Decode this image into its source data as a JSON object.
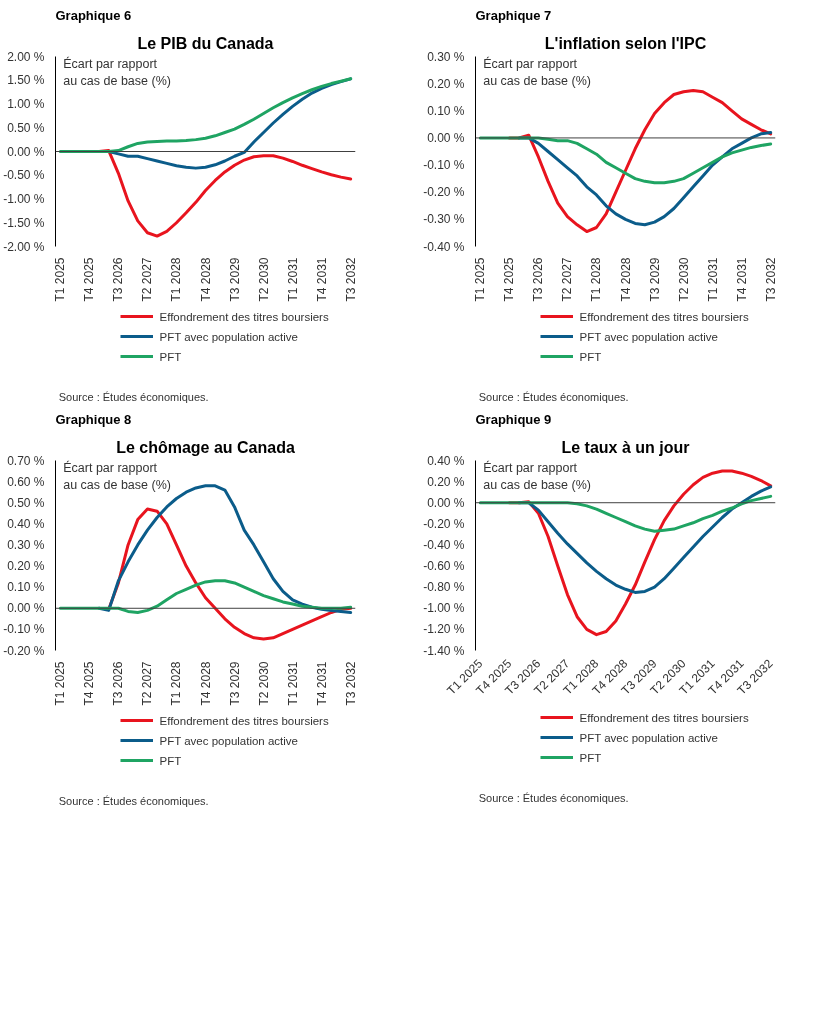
{
  "chart_data": [
    {
      "type": "line",
      "subtitle": "Graphique 6",
      "title": "Le PIB du Canada",
      "ylabel": "Écart par rapport au cas de base (%)",
      "categories": [
        "T1 2025",
        null,
        null,
        "T4 2025",
        null,
        null,
        "T3 2026",
        null,
        null,
        "T2 2027",
        null,
        null,
        "T1 2028",
        null,
        null,
        "T4 2028",
        null,
        null,
        "T3 2029",
        null,
        null,
        "T2 2030",
        null,
        null,
        "T1 2031",
        null,
        null,
        "T4 2031",
        null,
        null,
        "T3 2032"
      ],
      "series": [
        {
          "name": "Effondrement des titres boursiers",
          "color": "#e8141e",
          "values": [
            null,
            null,
            null,
            0,
            0,
            0.02,
            -0.46,
            -1.04,
            -1.46,
            -1.71,
            -1.78,
            -1.68,
            -1.5,
            -1.29,
            -1.07,
            -0.82,
            -0.61,
            -0.43,
            -0.29,
            -0.18,
            -0.11,
            -0.09,
            -0.09,
            -0.14,
            -0.21,
            -0.29,
            -0.36,
            -0.43,
            -0.49,
            -0.54,
            -0.58
          ]
        },
        {
          "name": "PFT avec population active",
          "color": "#0b5c8a",
          "values": [
            null,
            null,
            null,
            null,
            0,
            0,
            -0.05,
            -0.1,
            -0.1,
            -0.15,
            -0.2,
            -0.25,
            -0.3,
            -0.33,
            -0.35,
            -0.33,
            -0.28,
            -0.2,
            -0.1,
            -0.02,
            0.2,
            0.4,
            0.6,
            0.78,
            0.95,
            1.1,
            1.23,
            1.33,
            1.41,
            1.47,
            1.53
          ]
        },
        {
          "name": "PFT",
          "color": "#1fa463",
          "values": [
            0,
            0,
            0,
            0,
            0,
            0,
            0.02,
            0.1,
            0.17,
            0.2,
            0.21,
            0.22,
            0.22,
            0.23,
            0.25,
            0.28,
            0.33,
            0.4,
            0.47,
            0.57,
            0.68,
            0.8,
            0.92,
            1.03,
            1.13,
            1.22,
            1.3,
            1.37,
            1.43,
            1.48,
            1.53
          ]
        }
      ],
      "ylim": [
        -2,
        2
      ],
      "yticks": [
        {
          "value": -2,
          "label": "-2.00 %"
        },
        {
          "value": -1.5,
          "label": "-1.50 %"
        },
        {
          "value": -1,
          "label": "-1.00 %"
        },
        {
          "value": -0.5,
          "label": "-0.50 %"
        },
        {
          "value": 0,
          "label": "0.00 %"
        },
        {
          "value": 0.5,
          "label": "0.50 %"
        },
        {
          "value": 1,
          "label": "1.00 %"
        },
        {
          "value": 1.5,
          "label": "1.50 %"
        },
        {
          "value": 2,
          "label": "2.00 %"
        }
      ],
      "ref_lines": [
        {
          "axis": "y",
          "value": 0,
          "color": "#404040"
        }
      ],
      "legend": "bottom",
      "grid": false,
      "line_style": "solid",
      "marker": "none",
      "annotations": [
        "Source : Études économiques."
      ]
    },
    {
      "type": "line",
      "subtitle": "Graphique 7",
      "title": "L'inflation selon l'IPC",
      "ylabel": "Écart par rapport au cas de base (%)",
      "categories": [
        "T1 2025",
        null,
        null,
        "T4 2025",
        null,
        null,
        "T3 2026",
        null,
        null,
        "T2 2027",
        null,
        null,
        "T1 2028",
        null,
        null,
        "T4 2028",
        null,
        null,
        "T3 2029",
        null,
        null,
        "T2 2030",
        null,
        null,
        "T1 2031",
        null,
        null,
        "T4 2031",
        null,
        null,
        "T3 2032"
      ],
      "series": [
        {
          "name": "Effondrement des titres boursiers",
          "color": "#e8141e",
          "values": [
            null,
            null,
            null,
            0,
            0,
            0.01,
            -0.07,
            -0.16,
            -0.24,
            -0.29,
            -0.32,
            -0.345,
            -0.33,
            -0.28,
            -0.2,
            -0.12,
            -0.04,
            0.03,
            0.09,
            0.13,
            0.16,
            0.17,
            0.175,
            0.17,
            0.15,
            0.13,
            0.1,
            0.07,
            0.05,
            0.03,
            0.015
          ]
        },
        {
          "name": "PFT avec population active",
          "color": "#0b5c8a",
          "values": [
            null,
            null,
            null,
            null,
            0,
            0,
            -0.02,
            -0.05,
            -0.08,
            -0.11,
            -0.14,
            -0.18,
            -0.21,
            -0.25,
            -0.28,
            -0.3,
            -0.315,
            -0.32,
            -0.31,
            -0.29,
            -0.26,
            -0.22,
            -0.18,
            -0.14,
            -0.1,
            -0.07,
            -0.04,
            -0.02,
            0,
            0.015,
            0.02
          ]
        },
        {
          "name": "PFT",
          "color": "#1fa463",
          "values": [
            0,
            0,
            0,
            0,
            0,
            0,
            0,
            -0.005,
            -0.01,
            -0.01,
            -0.02,
            -0.04,
            -0.06,
            -0.09,
            -0.11,
            -0.13,
            -0.15,
            -0.16,
            -0.165,
            -0.165,
            -0.16,
            -0.15,
            -0.13,
            -0.11,
            -0.09,
            -0.07,
            -0.055,
            -0.045,
            -0.035,
            -0.028,
            -0.022
          ]
        }
      ],
      "ylim": [
        -0.4,
        0.3
      ],
      "yticks": [
        {
          "value": -0.4,
          "label": "-0.40 %"
        },
        {
          "value": -0.3,
          "label": "-0.30 %"
        },
        {
          "value": -0.2,
          "label": "-0.20 %"
        },
        {
          "value": -0.1,
          "label": "-0.10 %"
        },
        {
          "value": 0,
          "label": "0.00 %"
        },
        {
          "value": 0.1,
          "label": "0.10 %"
        },
        {
          "value": 0.2,
          "label": "0.20 %"
        },
        {
          "value": 0.3,
          "label": "0.30 %"
        }
      ],
      "ref_lines": [
        {
          "axis": "y",
          "value": 0,
          "color": "#404040"
        }
      ],
      "legend": "bottom",
      "grid": false,
      "line_style": "solid",
      "marker": "none",
      "annotations": [
        "Source : Études économiques."
      ]
    },
    {
      "type": "line",
      "subtitle": "Graphique 8",
      "title": "Le chômage au Canada",
      "ylabel": "Écart par rapport au cas de base (%)",
      "categories": [
        "T1 2025",
        null,
        null,
        "T4 2025",
        null,
        null,
        "T3 2026",
        null,
        null,
        "T2 2027",
        null,
        null,
        "T1 2028",
        null,
        null,
        "T4 2028",
        null,
        null,
        "T3 2029",
        null,
        null,
        "T2 2030",
        null,
        null,
        "T1 2031",
        null,
        null,
        "T4 2031",
        null,
        null,
        "T3 2032"
      ],
      "series": [
        {
          "name": "Effondrement des titres boursiers",
          "color": "#e8141e",
          "values": [
            null,
            null,
            null,
            null,
            null,
            -0.005,
            0.12,
            0.3,
            0.42,
            0.47,
            0.46,
            0.4,
            0.3,
            0.2,
            0.12,
            0.05,
            0,
            -0.05,
            -0.09,
            -0.12,
            -0.14,
            -0.145,
            -0.14,
            -0.12,
            -0.1,
            -0.08,
            -0.06,
            -0.04,
            -0.02,
            -0.005,
            0
          ]
        },
        {
          "name": "PFT avec population active",
          "color": "#0b5c8a",
          "values": [
            null,
            null,
            null,
            null,
            0,
            -0.01,
            0.13,
            0.22,
            0.3,
            0.37,
            0.43,
            0.48,
            0.52,
            0.55,
            0.57,
            0.58,
            0.58,
            0.56,
            0.48,
            0.37,
            0.3,
            0.22,
            0.14,
            0.08,
            0.04,
            0.02,
            0.005,
            -0.005,
            -0.01,
            -0.015,
            -0.02
          ]
        },
        {
          "name": "PFT",
          "color": "#1fa463",
          "values": [
            0,
            0,
            0,
            0,
            0,
            0,
            0,
            -0.015,
            -0.02,
            -0.01,
            0.01,
            0.04,
            0.07,
            0.09,
            0.11,
            0.125,
            0.13,
            0.13,
            0.12,
            0.1,
            0.08,
            0.06,
            0.045,
            0.03,
            0.02,
            0.01,
            0.005,
            0,
            0,
            0,
            0.005
          ]
        }
      ],
      "ylim": [
        -0.2,
        0.7
      ],
      "yticks": [
        {
          "value": -0.2,
          "label": "-0.20 %"
        },
        {
          "value": -0.1,
          "label": "-0.10 %"
        },
        {
          "value": 0,
          "label": "0.00 %"
        },
        {
          "value": 0.1,
          "label": "0.10 %"
        },
        {
          "value": 0.2,
          "label": "0.20 %"
        },
        {
          "value": 0.3,
          "label": "0.30 %"
        },
        {
          "value": 0.4,
          "label": "0.40 %"
        },
        {
          "value": 0.5,
          "label": "0.50 %"
        },
        {
          "value": 0.6,
          "label": "0.60 %"
        },
        {
          "value": 0.7,
          "label": "0.70 %"
        }
      ],
      "ref_lines": [
        {
          "axis": "y",
          "value": 0,
          "color": "#404040"
        }
      ],
      "legend": "bottom",
      "grid": false,
      "line_style": "solid",
      "marker": "none",
      "annotations": [
        "Source : Études économiques."
      ]
    },
    {
      "type": "line",
      "subtitle": "Graphique 9",
      "title": "Le taux à un jour",
      "ylabel": "Écart par rapport au cas de base (%)",
      "categories": [
        "T1 2025",
        null,
        null,
        "T4 2025",
        null,
        null,
        "T3 2026",
        null,
        null,
        "T2 2027",
        null,
        null,
        "T1 2028",
        null,
        null,
        "T4 2028",
        null,
        null,
        "T3 2029",
        null,
        null,
        "T2 2030",
        null,
        null,
        "T1 2031",
        null,
        null,
        "T4 2031",
        null,
        null,
        "T3 2032"
      ],
      "series": [
        {
          "name": "Effondrement des titres boursiers",
          "color": "#e8141e",
          "values": [
            null,
            null,
            null,
            0,
            0,
            0.01,
            -0.1,
            -0.32,
            -0.6,
            -0.87,
            -1.08,
            -1.2,
            -1.25,
            -1.22,
            -1.12,
            -0.96,
            -0.78,
            -0.56,
            -0.35,
            -0.17,
            -0.03,
            0.08,
            0.17,
            0.24,
            0.28,
            0.3,
            0.3,
            0.28,
            0.25,
            0.21,
            0.16
          ]
        },
        {
          "name": "PFT avec population active",
          "color": "#0b5c8a",
          "values": [
            null,
            null,
            null,
            null,
            0,
            0,
            -0.07,
            -0.18,
            -0.29,
            -0.39,
            -0.48,
            -0.57,
            -0.65,
            -0.72,
            -0.78,
            -0.82,
            -0.85,
            -0.84,
            -0.8,
            -0.72,
            -0.62,
            -0.52,
            -0.42,
            -0.32,
            -0.23,
            -0.14,
            -0.06,
            0,
            0.06,
            0.11,
            0.15
          ]
        },
        {
          "name": "PFT",
          "color": "#1fa463",
          "values": [
            0,
            0,
            0,
            0,
            0,
            0,
            0,
            0,
            0,
            0,
            -0.01,
            -0.03,
            -0.06,
            -0.1,
            -0.14,
            -0.18,
            -0.22,
            -0.25,
            -0.27,
            -0.26,
            -0.25,
            -0.22,
            -0.19,
            -0.15,
            -0.12,
            -0.08,
            -0.05,
            -0.01,
            0.02,
            0.04,
            0.06
          ]
        }
      ],
      "ylim": [
        -1.4,
        0.4
      ],
      "yticks": [
        {
          "value": -1.4,
          "label": "-1.40 %"
        },
        {
          "value": -1.2,
          "label": "-1.20 %"
        },
        {
          "value": -1,
          "label": "-1.00 %"
        },
        {
          "value": -0.8,
          "label": "-0.80 %"
        },
        {
          "value": -0.6,
          "label": "-0.60 %"
        },
        {
          "value": -0.4,
          "label": "-0.40 %"
        },
        {
          "value": -0.2,
          "label": "-0.20 %"
        },
        {
          "value": 0,
          "label": "0.00 %"
        },
        {
          "value": 0.2,
          "label": "0.20 %"
        },
        {
          "value": 0.4,
          "label": "0.40 %"
        }
      ],
      "ref_lines": [
        {
          "axis": "y",
          "value": 0,
          "color": "#404040"
        }
      ],
      "legend": "bottom",
      "grid": false,
      "line_style": "solid",
      "marker": "none",
      "annotations": [
        "Source : Études économiques."
      ]
    }
  ]
}
